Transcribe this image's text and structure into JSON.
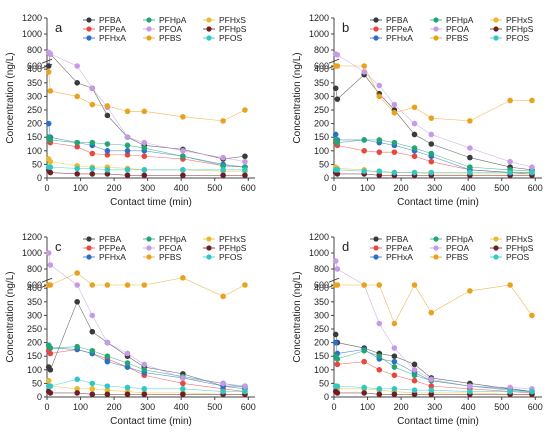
{
  "figure": {
    "colors": {
      "PFBA": "#3a3a3a",
      "PFPeA": "#e8473f",
      "PFHxA": "#2a6fc9",
      "PFHpA": "#21a675",
      "PFOA": "#c79ae6",
      "PFHxS": "#ebb92f",
      "PFBS": "#e9a21f",
      "PFHpS": "#6b1f24",
      "PFOS": "#31c7c7"
    },
    "legend_order": [
      "PFBA",
      "PFHpA",
      "PFHxS",
      "PFPeA",
      "PFOA",
      "PFHpS",
      "PFHxA",
      "PFBS",
      "PFOS"
    ]
  },
  "chart_data": [
    {
      "panel": "a",
      "type": "scatter",
      "xlabel": "Contact time (min)",
      "ylabel": "Concentration (ng/L)",
      "xlim": [
        0,
        620
      ],
      "xticks": [
        "0",
        "100",
        "200",
        "300",
        "400",
        "500",
        "600"
      ],
      "yticks": [
        "0",
        "50",
        "100",
        "150",
        "200",
        "250",
        "300",
        "350",
        "400",
        "600",
        "800",
        "1000",
        "1200"
      ],
      "axis_break": [
        400,
        600
      ],
      "x": [
        5,
        10,
        90,
        135,
        180,
        240,
        290,
        405,
        525,
        590
      ],
      "series": [
        {
          "name": "PFBA",
          "values": [
            470,
            750,
            350,
            330,
            230,
            150,
            120,
            105,
            70,
            80
          ]
        },
        {
          "name": "PFPeA",
          "values": [
            150,
            130,
            115,
            90,
            85,
            85,
            80,
            70,
            45,
            40
          ]
        },
        {
          "name": "PFHxA",
          "values": [
            200,
            150,
            130,
            120,
            100,
            100,
            100,
            80,
            50,
            40
          ]
        },
        {
          "name": "PFHpA",
          "values": [
            150,
            140,
            130,
            130,
            125,
            120,
            110,
            80,
            45,
            40
          ]
        },
        {
          "name": "PFOA",
          "values": [
            770,
            750,
            500,
            330,
            260,
            150,
            130,
            100,
            75,
            60
          ]
        },
        {
          "name": "PFHxS",
          "values": [
            70,
            60,
            45,
            40,
            40,
            35,
            30,
            30,
            25,
            25
          ]
        },
        {
          "name": "PFBS",
          "values": [
            390,
            320,
            300,
            270,
            265,
            245,
            245,
            225,
            210,
            250
          ]
        },
        {
          "name": "PFHpS",
          "values": [
            30,
            20,
            15,
            15,
            15,
            10,
            10,
            10,
            10,
            10
          ]
        },
        {
          "name": "PFOS",
          "values": [
            40,
            40,
            35,
            35,
            30,
            30,
            30,
            30,
            30,
            30
          ]
        }
      ]
    },
    {
      "panel": "b",
      "type": "scatter",
      "xlabel": "Contact time (min)",
      "ylabel": "Concentration (ng/L)",
      "xlim": [
        0,
        620
      ],
      "xticks": [
        "0",
        "100",
        "200",
        "300",
        "400",
        "500",
        "600"
      ],
      "yticks": [
        "0",
        "50",
        "100",
        "150",
        "200",
        "250",
        "300",
        "350",
        "400",
        "600",
        "800",
        "1000",
        "1200"
      ],
      "axis_break": [
        400,
        600
      ],
      "x": [
        5,
        10,
        90,
        135,
        180,
        240,
        290,
        405,
        525,
        590
      ],
      "series": [
        {
          "name": "PFBA",
          "values": [
            330,
            290,
            380,
            310,
            250,
            160,
            125,
            75,
            40,
            30
          ]
        },
        {
          "name": "PFPeA",
          "values": [
            130,
            120,
            100,
            95,
            95,
            80,
            60,
            30,
            20,
            20
          ]
        },
        {
          "name": "PFHxA",
          "values": [
            160,
            140,
            140,
            130,
            120,
            100,
            80,
            30,
            20,
            15
          ]
        },
        {
          "name": "PFHpA",
          "values": [
            140,
            130,
            140,
            140,
            130,
            110,
            90,
            40,
            30,
            25
          ]
        },
        {
          "name": "PFOA",
          "values": [
            750,
            740,
            390,
            340,
            270,
            200,
            160,
            110,
            60,
            40
          ]
        },
        {
          "name": "PFHxS",
          "values": [
            40,
            35,
            30,
            20,
            20,
            20,
            15,
            15,
            15,
            15
          ]
        },
        {
          "name": "PFBS",
          "values": [
            550,
            460,
            490,
            300,
            240,
            260,
            220,
            210,
            285,
            285
          ]
        },
        {
          "name": "PFHpS",
          "values": [
            20,
            15,
            15,
            10,
            10,
            10,
            10,
            10,
            10,
            10
          ]
        },
        {
          "name": "PFOS",
          "values": [
            30,
            30,
            25,
            25,
            20,
            20,
            20,
            20,
            20,
            20
          ]
        }
      ]
    },
    {
      "panel": "c",
      "type": "scatter",
      "xlabel": "Contact time (min)",
      "ylabel": "Concentration (ng/L)",
      "xlim": [
        0,
        620
      ],
      "xticks": [
        "0",
        "100",
        "200",
        "300",
        "400",
        "500",
        "600"
      ],
      "yticks": [
        "0",
        "50",
        "100",
        "150",
        "200",
        "250",
        "300",
        "350",
        "400",
        "600",
        "800",
        "1000",
        "1200"
      ],
      "axis_break": [
        400,
        600
      ],
      "x": [
        5,
        10,
        90,
        135,
        180,
        240,
        290,
        405,
        525,
        590
      ],
      "series": [
        {
          "name": "PFBA",
          "values": [
            110,
            100,
            350,
            240,
            200,
            150,
            110,
            85,
            40,
            40
          ]
        },
        {
          "name": "PFPeA",
          "values": [
            170,
            160,
            175,
            160,
            140,
            110,
            80,
            50,
            30,
            20
          ]
        },
        {
          "name": "PFHxA",
          "values": [
            190,
            180,
            175,
            160,
            130,
            110,
            90,
            70,
            40,
            30
          ]
        },
        {
          "name": "PFHpA",
          "values": [
            190,
            180,
            185,
            170,
            150,
            125,
            100,
            75,
            50,
            35
          ]
        },
        {
          "name": "PFOA",
          "values": [
            1000,
            850,
            500,
            300,
            200,
            160,
            120,
            70,
            50,
            40
          ]
        },
        {
          "name": "PFHxS",
          "values": [
            60,
            40,
            30,
            30,
            25,
            20,
            15,
            15,
            10,
            10
          ]
        },
        {
          "name": "PFBS",
          "values": [
            600,
            570,
            750,
            600,
            580,
            520,
            490,
            690,
            370,
            550
          ]
        },
        {
          "name": "PFHpS",
          "values": [
            20,
            15,
            15,
            10,
            10,
            10,
            10,
            10,
            10,
            10
          ]
        },
        {
          "name": "PFOS",
          "values": [
            40,
            40,
            65,
            50,
            40,
            35,
            30,
            30,
            20,
            20
          ]
        }
      ]
    },
    {
      "panel": "d",
      "type": "scatter",
      "xlabel": "Contact time (min)",
      "ylabel": "Concentration (ng/L)",
      "xlim": [
        0,
        620
      ],
      "xticks": [
        "0",
        "100",
        "200",
        "300",
        "400",
        "500",
        "600"
      ],
      "yticks": [
        "0",
        "50",
        "100",
        "150",
        "200",
        "250",
        "300",
        "350",
        "400",
        "600",
        "800",
        "1000",
        "1200"
      ],
      "axis_break": [
        400,
        600
      ],
      "x": [
        5,
        10,
        90,
        135,
        180,
        240,
        290,
        405,
        525,
        590
      ],
      "series": [
        {
          "name": "PFBA",
          "values": [
            230,
            200,
            180,
            160,
            150,
            120,
            70,
            50,
            30,
            20
          ]
        },
        {
          "name": "PFPeA",
          "values": [
            150,
            120,
            130,
            100,
            80,
            60,
            40,
            30,
            20,
            15
          ]
        },
        {
          "name": "PFHxA",
          "values": [
            200,
            160,
            175,
            140,
            130,
            90,
            60,
            40,
            30,
            20
          ]
        },
        {
          "name": "PFHpA",
          "values": [
            150,
            140,
            170,
            150,
            110,
            80,
            60,
            40,
            25,
            20
          ]
        },
        {
          "name": "PFOA",
          "values": [
            900,
            800,
            550,
            270,
            180,
            100,
            65,
            40,
            35,
            30
          ]
        },
        {
          "name": "PFHxS",
          "values": [
            40,
            30,
            30,
            25,
            20,
            15,
            15,
            15,
            10,
            10
          ]
        },
        {
          "name": "PFBS",
          "values": [
            500,
            440,
            450,
            600,
            270,
            490,
            310,
            390,
            405,
            300
          ]
        },
        {
          "name": "PFHpS",
          "values": [
            20,
            15,
            15,
            10,
            10,
            10,
            10,
            10,
            10,
            10
          ]
        },
        {
          "name": "PFOS",
          "values": [
            40,
            40,
            35,
            30,
            30,
            25,
            25,
            20,
            20,
            20
          ]
        }
      ]
    }
  ]
}
